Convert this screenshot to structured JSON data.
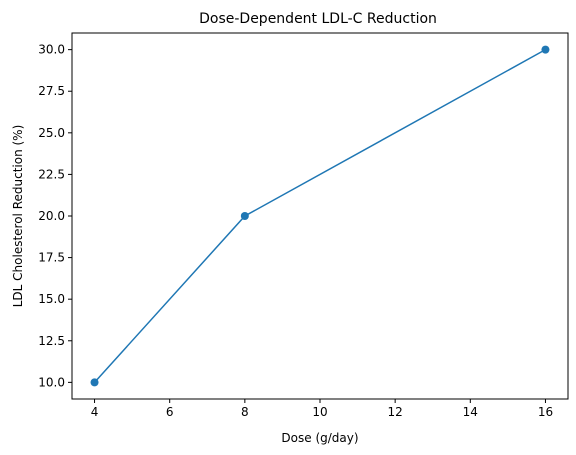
{
  "chart_data": {
    "type": "line",
    "title": "Dose-Dependent LDL-C Reduction",
    "xlabel": "Dose (g/day)",
    "ylabel": "LDL Cholesterol Reduction (%)",
    "x": [
      4,
      8,
      16
    ],
    "series": [
      {
        "values": [
          10.0,
          20.0,
          30.0
        ],
        "color": "#1f77b4",
        "marker": "circle"
      }
    ],
    "xlim": [
      3.4,
      16.6
    ],
    "ylim": [
      9.0,
      31.0
    ],
    "xticks": [
      4,
      6,
      8,
      10,
      12,
      14,
      16
    ],
    "xtick_labels": [
      "4",
      "6",
      "8",
      "10",
      "12",
      "14",
      "16"
    ],
    "yticks": [
      10.0,
      12.5,
      15.0,
      17.5,
      20.0,
      22.5,
      25.0,
      27.5,
      30.0
    ],
    "ytick_labels": [
      "10.0",
      "12.5",
      "15.0",
      "17.5",
      "20.0",
      "22.5",
      "25.0",
      "27.5",
      "30.0"
    ],
    "grid": false,
    "legend": "none"
  }
}
